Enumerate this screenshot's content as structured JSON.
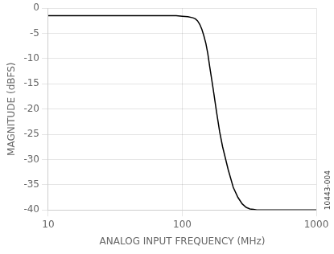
{
  "chart_data": {
    "type": "line",
    "xlabel": "ANALOG INPUT FREQUENCY (MHz)",
    "ylabel": "MAGNITUDE (dBFS)",
    "annotation": "10443-004",
    "x": [
      10,
      20,
      30,
      40,
      50,
      60,
      70,
      80,
      90,
      100,
      110,
      120,
      125,
      130,
      135,
      140,
      145,
      150,
      155,
      160,
      170,
      180,
      190,
      200,
      220,
      240,
      260,
      280,
      300,
      320,
      340,
      360,
      380,
      400,
      500,
      600,
      700,
      800,
      1000
    ],
    "values": [
      -1.5,
      -1.5,
      -1.5,
      -1.5,
      -1.5,
      -1.5,
      -1.5,
      -1.5,
      -1.5,
      -1.6,
      -1.7,
      -1.9,
      -2.1,
      -2.5,
      -3.2,
      -4.2,
      -5.5,
      -7.0,
      -9.0,
      -11.5,
      -16.0,
      -20.5,
      -24.5,
      -27.5,
      -32.0,
      -35.5,
      -37.5,
      -38.8,
      -39.5,
      -39.8,
      -39.9,
      -40.0,
      -40.0,
      -40.0,
      -40.0,
      -40.0,
      -40.0,
      -40.0,
      -40.0
    ],
    "color": "#000000",
    "xlim": [
      10,
      1000
    ],
    "ylim": [
      -40,
      0
    ],
    "xticks": [
      10,
      100,
      1000
    ],
    "yticks": [
      0,
      -5,
      -10,
      -15,
      -20,
      -25,
      -30,
      -35,
      -40
    ],
    "log": "x",
    "grid": true
  }
}
